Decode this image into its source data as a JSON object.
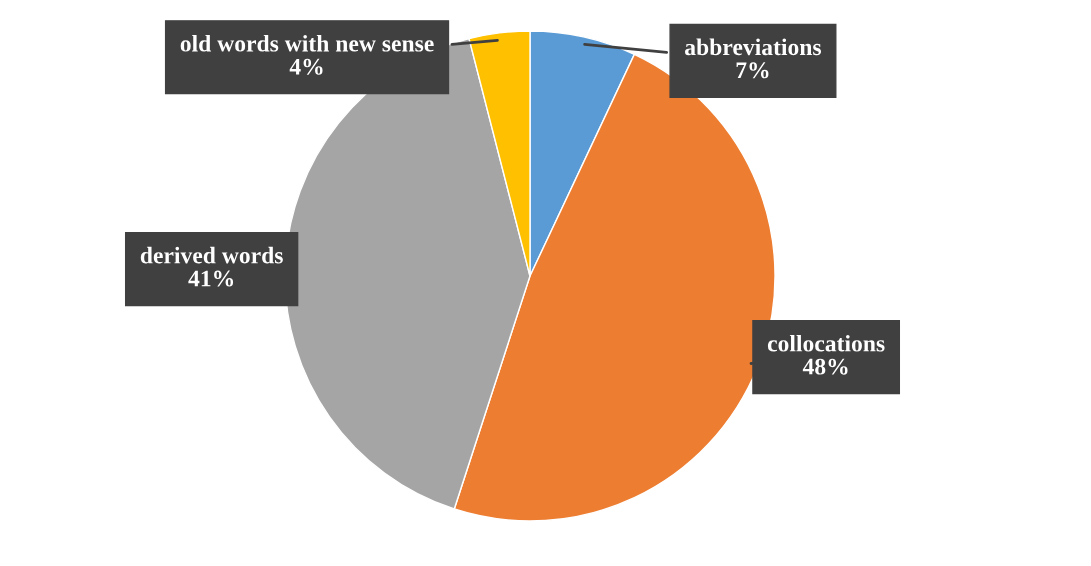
{
  "chart_data": {
    "type": "pie",
    "categories": [
      "abbreviations",
      "collocations",
      "derived words",
      "old words with new sense"
    ],
    "values": [
      7,
      48,
      41,
      4
    ],
    "colors": [
      "#5b9bd5",
      "#ed7d31",
      "#a5a5a5",
      "#ffc000"
    ],
    "value_labels": [
      "7%",
      "48%",
      "41%",
      "4%"
    ]
  }
}
